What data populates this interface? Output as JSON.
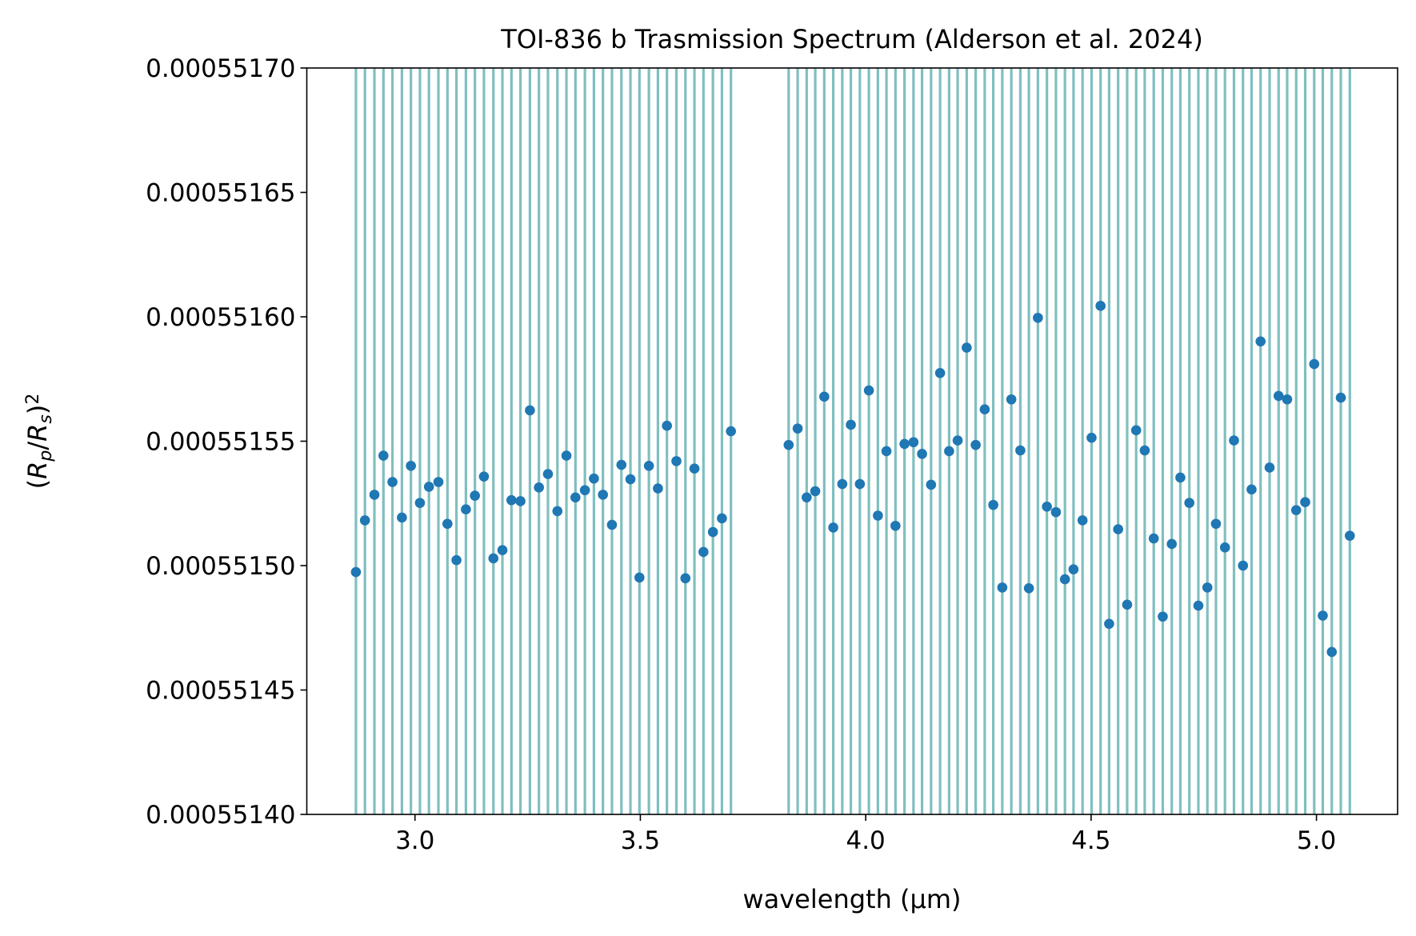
{
  "chart_data": {
    "type": "scatter",
    "title": "TOI-836 b Trasmission Spectrum (Alderson et al. 2024)",
    "xlabel": "wavelength (µm)",
    "ylabel": [
      "(",
      "R",
      "p",
      "/",
      "R",
      "s",
      ")",
      "2"
    ],
    "xlim": [
      2.76,
      5.18
    ],
    "ylim": [
      0.0005514,
      0.0005517
    ],
    "xticks": [
      {
        "value": 3,
        "label": "3.0"
      },
      {
        "value": 3.5,
        "label": "3.5"
      },
      {
        "value": 4,
        "label": "4.0"
      },
      {
        "value": 4.5,
        "label": "4.5"
      },
      {
        "value": 5,
        "label": "5.0"
      }
    ],
    "yticks": [
      {
        "value": 0.0005514,
        "label": "0.00055140"
      },
      {
        "value": 0.00055145,
        "label": "0.00055145"
      },
      {
        "value": 0.0005515,
        "label": "0.00055150"
      },
      {
        "value": 0.00055155,
        "label": "0.00055155"
      },
      {
        "value": 0.0005516,
        "label": "0.00055160"
      },
      {
        "value": 0.00055165,
        "label": "0.00055165"
      },
      {
        "value": 0.0005517,
        "label": "0.00055170"
      }
    ],
    "grid": false,
    "bin_line_color": "#80bfc0",
    "series": [
      {
        "color": "#1f77b4",
        "x": [
          2.869,
          2.889,
          2.91,
          2.93,
          2.95,
          2.971,
          2.991,
          3.011,
          3.031,
          3.052,
          3.072,
          3.092,
          3.113,
          3.133,
          3.153,
          3.174,
          3.194,
          3.214,
          3.234,
          3.255,
          3.275,
          3.295,
          3.316,
          3.336,
          3.356,
          3.377,
          3.397,
          3.417,
          3.437,
          3.458,
          3.478,
          3.498,
          3.519,
          3.539,
          3.559,
          3.58,
          3.6,
          3.62,
          3.64,
          3.661,
          3.681,
          3.701,
          3.829,
          3.849,
          3.869,
          3.888,
          3.908,
          3.928,
          3.948,
          3.967,
          3.987,
          4.007,
          4.027,
          4.046,
          4.066,
          4.086,
          4.106,
          4.125,
          4.145,
          4.165,
          4.185,
          4.204,
          4.224,
          4.244,
          4.264,
          4.283,
          4.303,
          4.323,
          4.343,
          4.362,
          4.382,
          4.402,
          4.422,
          4.442,
          4.461,
          4.481,
          4.501,
          4.521,
          4.54,
          4.56,
          4.58,
          4.6,
          4.619,
          4.639,
          4.659,
          4.679,
          4.698,
          4.718,
          4.738,
          4.758,
          4.777,
          4.797,
          4.817,
          4.837,
          4.856,
          4.876,
          4.896,
          4.916,
          4.935,
          4.955,
          4.975,
          4.995,
          5.014,
          5.034,
          5.054,
          5.074
        ],
        "values": [
          0.0005514974,
          0.0005515182,
          0.0005515285,
          0.0005515442,
          0.0005515336,
          0.0005515193,
          0.0005515401,
          0.0005515252,
          0.0005515317,
          0.0005515336,
          0.0005515168,
          0.0005515022,
          0.0005515226,
          0.0005515281,
          0.0005515358,
          0.0005515029,
          0.0005515062,
          0.0005515263,
          0.0005515259,
          0.0005515624,
          0.0005515314,
          0.0005515368,
          0.0005515219,
          0.0005515442,
          0.0005515274,
          0.0005515303,
          0.000551535,
          0.0005515285,
          0.0005515164,
          0.0005515405,
          0.0005515347,
          0.0005514952,
          0.0005515401,
          0.000551531,
          0.0005515562,
          0.000551542,
          0.0005514949,
          0.000551539,
          0.0005515055,
          0.0005515135,
          0.000551519,
          0.000551554,
          0.0005515485,
          0.0005515551,
          0.0005515274,
          0.0005515299,
          0.0005515679,
          0.0005515153,
          0.0005515328,
          0.0005515566,
          0.0005515328,
          0.0005515704,
          0.0005515201,
          0.000551546,
          0.000551516,
          0.0005515489,
          0.0005515496,
          0.0005515449,
          0.0005515325,
          0.0005515774,
          0.000551546,
          0.0005515503,
          0.0005515876,
          0.0005515485,
          0.0005515628,
          0.0005515244,
          0.0005514912,
          0.0005515668,
          0.0005515463,
          0.0005514909,
          0.0005515996,
          0.0005515237,
          0.0005515215,
          0.0005514945,
          0.0005514985,
          0.0005515182,
          0.0005515514,
          0.0005516044,
          0.0005514766,
          0.0005515146,
          0.0005514843,
          0.0005515544,
          0.0005515463,
          0.0005515109,
          0.0005514795,
          0.0005515087,
          0.0005515354,
          0.0005515252,
          0.0005514839,
          0.0005514912,
          0.0005515168,
          0.0005515073,
          0.0005515503,
          0.0005515,
          0.0005515306,
          0.0005515901,
          0.0005515394,
          0.0005515682,
          0.0005515668,
          0.0005515223,
          0.0005515255,
          0.000551581,
          0.0005514799,
          0.0005514653,
          0.0005515675,
          0.000551512
        ]
      }
    ]
  }
}
